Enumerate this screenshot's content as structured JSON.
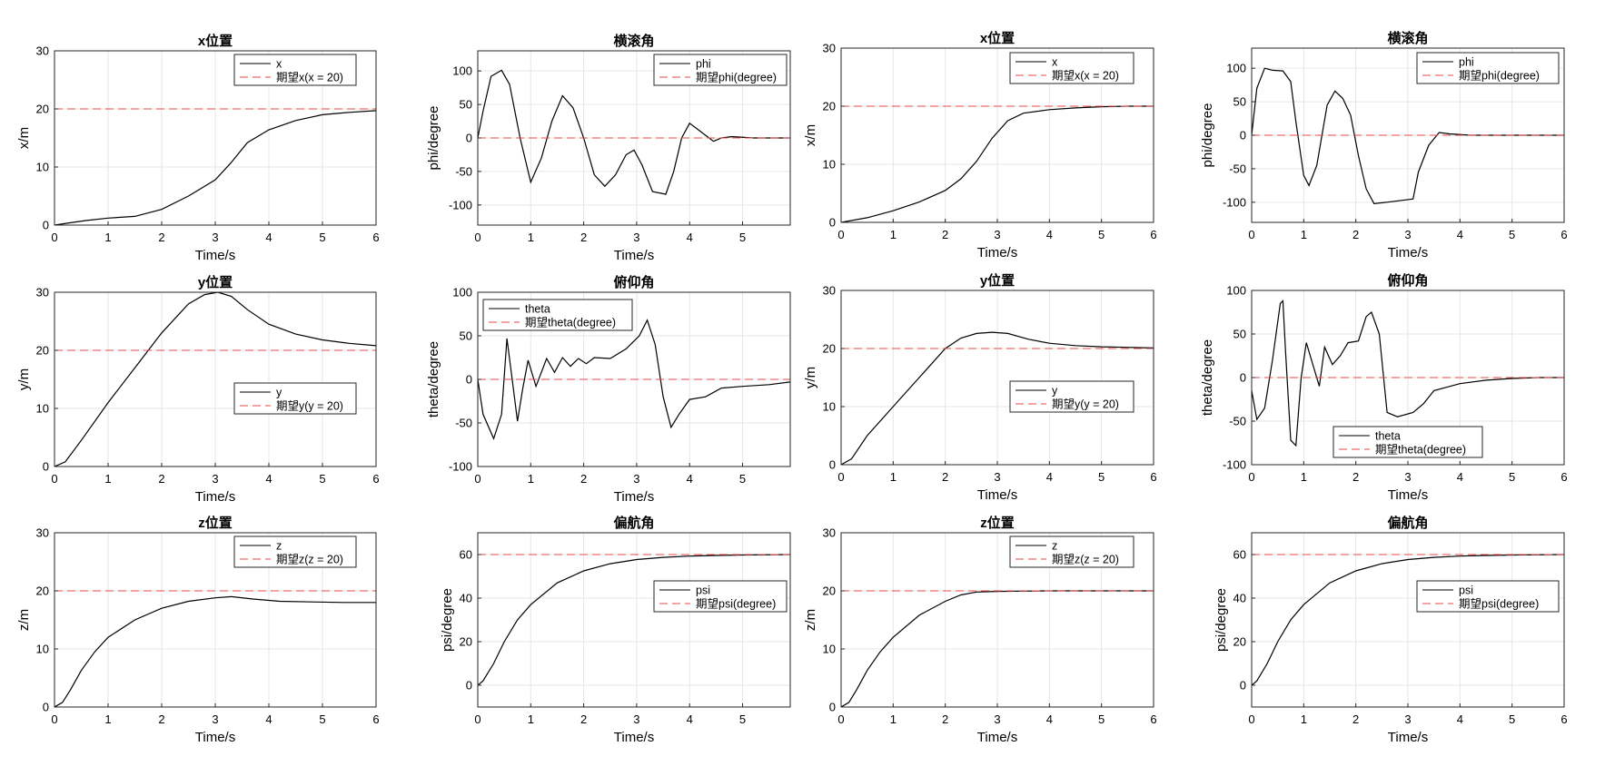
{
  "colors": {
    "series": "#000000",
    "reference": "#e8474a",
    "grid": "#e6e6e6",
    "axes": "#262626"
  },
  "chart_data": [
    {
      "type": "line",
      "title": "x位置",
      "xlabel": "Time/s",
      "ylabel": "x/m",
      "xlim": [
        0,
        6
      ],
      "ylim": [
        0,
        30
      ],
      "xticks": [
        0,
        1,
        2,
        3,
        4,
        5,
        6
      ],
      "yticks": [
        0,
        10,
        20,
        30
      ],
      "grid": true,
      "legend_position": "top-right",
      "series": [
        {
          "name": "x",
          "style": "solid",
          "x": [
            0,
            0.3,
            0.6,
            1,
            1.5,
            2,
            2.5,
            3,
            3.3,
            3.6,
            4,
            4.5,
            5,
            5.5,
            6
          ],
          "y": [
            0,
            0.4,
            0.8,
            1.2,
            1.5,
            2.7,
            5,
            7.8,
            10.8,
            14.2,
            16.4,
            18,
            19,
            19.4,
            19.7
          ]
        },
        {
          "name": "期望x(x = 20)",
          "style": "dashed",
          "x": [
            0,
            6
          ],
          "y": [
            20,
            20
          ]
        }
      ]
    },
    {
      "type": "line",
      "title": "横滚角",
      "xlabel": "Time/s",
      "ylabel": "phi/degree",
      "xlim": [
        0,
        5.9
      ],
      "ylim": [
        -130,
        130
      ],
      "xticks": [
        0,
        1,
        2,
        3,
        4,
        5
      ],
      "yticks": [
        -100,
        -50,
        0,
        50,
        100
      ],
      "grid": true,
      "legend_position": "top-right",
      "series": [
        {
          "name": "phi",
          "style": "solid",
          "x": [
            0,
            0.1,
            0.25,
            0.45,
            0.6,
            0.8,
            1,
            1.2,
            1.4,
            1.6,
            1.8,
            2,
            2.2,
            2.4,
            2.6,
            2.8,
            2.95,
            3.1,
            3.3,
            3.55,
            3.7,
            3.85,
            4,
            4.2,
            4.45,
            4.6,
            4.8,
            5.2,
            5.9
          ],
          "y": [
            0,
            40,
            92,
            101,
            80,
            0,
            -66,
            -30,
            25,
            63,
            45,
            0,
            -55,
            -72,
            -55,
            -25,
            -18,
            -40,
            -80,
            -84,
            -50,
            0,
            22,
            10,
            -5,
            0,
            2,
            0,
            0
          ]
        },
        {
          "name": "期望phi(degree)",
          "style": "dashed",
          "x": [
            0,
            5.9
          ],
          "y": [
            0,
            0
          ]
        }
      ]
    },
    {
      "type": "line",
      "title": "x位置",
      "xlabel": "Time/s",
      "ylabel": "x/m",
      "xlim": [
        0,
        6
      ],
      "ylim": [
        0,
        30
      ],
      "xticks": [
        0,
        1,
        2,
        3,
        4,
        5,
        6
      ],
      "yticks": [
        0,
        10,
        20,
        30
      ],
      "grid": true,
      "legend_position": "top-right",
      "series": [
        {
          "name": "x",
          "style": "solid",
          "x": [
            0,
            0.5,
            1,
            1.5,
            2,
            2.3,
            2.6,
            2.9,
            3.2,
            3.5,
            4,
            4.5,
            5,
            5.5,
            6
          ],
          "y": [
            0,
            0.8,
            2,
            3.5,
            5.5,
            7.5,
            10.5,
            14.5,
            17.5,
            18.8,
            19.4,
            19.7,
            19.9,
            20,
            20
          ]
        },
        {
          "name": "期望x(x = 20)",
          "style": "dashed",
          "x": [
            0,
            6
          ],
          "y": [
            20,
            20
          ]
        }
      ]
    },
    {
      "type": "line",
      "title": "横滚角",
      "xlabel": "Time/s",
      "ylabel": "phi/degree",
      "xlim": [
        0,
        6
      ],
      "ylim": [
        -130,
        130
      ],
      "xticks": [
        0,
        1,
        2,
        3,
        4,
        5,
        6
      ],
      "yticks": [
        -100,
        -50,
        0,
        50,
        100
      ],
      "grid": true,
      "legend_position": "top-right",
      "series": [
        {
          "name": "phi",
          "style": "solid",
          "x": [
            0,
            0.1,
            0.25,
            0.4,
            0.6,
            0.75,
            0.85,
            1,
            1.1,
            1.25,
            1.45,
            1.6,
            1.75,
            1.9,
            2.05,
            2.2,
            2.35,
            2.6,
            3.1,
            3.2,
            3.4,
            3.6,
            3.8,
            4.2,
            6
          ],
          "y": [
            0,
            70,
            100,
            97,
            96,
            80,
            20,
            -60,
            -75,
            -45,
            45,
            66,
            55,
            30,
            -30,
            -80,
            -102,
            -100,
            -95,
            -55,
            -15,
            4,
            2,
            0,
            0
          ]
        },
        {
          "name": "期望phi(degree)",
          "style": "dashed",
          "x": [
            0,
            6
          ],
          "y": [
            0,
            0
          ]
        }
      ]
    },
    {
      "type": "line",
      "title": "y位置",
      "xlabel": "Time/s",
      "ylabel": "y/m",
      "xlim": [
        0,
        6
      ],
      "ylim": [
        0,
        30
      ],
      "xticks": [
        0,
        1,
        2,
        3,
        4,
        5,
        6
      ],
      "yticks": [
        0,
        10,
        20,
        30
      ],
      "grid": true,
      "legend_position": "bottom-right",
      "series": [
        {
          "name": "y",
          "style": "solid",
          "x": [
            0,
            0.2,
            0.5,
            1,
            1.5,
            2,
            2.5,
            2.8,
            3.05,
            3.3,
            3.6,
            4,
            4.5,
            5,
            5.5,
            6
          ],
          "y": [
            0,
            0.8,
            4.5,
            11,
            17,
            23,
            28,
            29.6,
            30,
            29.3,
            27,
            24.5,
            22.8,
            21.8,
            21.2,
            20.8
          ]
        },
        {
          "name": "期望y(y = 20)",
          "style": "dashed",
          "x": [
            0,
            6
          ],
          "y": [
            20,
            20
          ]
        }
      ]
    },
    {
      "type": "line",
      "title": "俯仰角",
      "xlabel": "Time/s",
      "ylabel": "theta/degree",
      "xlim": [
        0,
        5.9
      ],
      "ylim": [
        -100,
        100
      ],
      "xticks": [
        0,
        1,
        2,
        3,
        4,
        5
      ],
      "yticks": [
        -100,
        -50,
        0,
        50,
        100
      ],
      "grid": true,
      "legend_position": "top-left",
      "series": [
        {
          "name": "theta",
          "style": "solid",
          "x": [
            0,
            0.1,
            0.3,
            0.45,
            0.55,
            0.65,
            0.75,
            0.85,
            0.95,
            1.1,
            1.3,
            1.45,
            1.6,
            1.75,
            1.9,
            2.05,
            2.2,
            2.5,
            2.8,
            3.05,
            3.2,
            3.35,
            3.5,
            3.65,
            3.8,
            4,
            4.3,
            4.6,
            5,
            5.5,
            5.9
          ],
          "y": [
            0,
            -40,
            -68,
            -40,
            47,
            0,
            -48,
            -10,
            22,
            -8,
            24,
            8,
            25,
            15,
            24,
            18,
            25,
            24,
            35,
            50,
            68,
            40,
            -20,
            -55,
            -40,
            -23,
            -20,
            -10,
            -8,
            -6,
            -3
          ]
        },
        {
          "name": "期望theta(degree)",
          "style": "dashed",
          "x": [
            0,
            5.9
          ],
          "y": [
            0,
            0
          ]
        }
      ]
    },
    {
      "type": "line",
      "title": "y位置",
      "xlabel": "Time/s",
      "ylabel": "y/m",
      "xlim": [
        0,
        6
      ],
      "ylim": [
        0,
        30
      ],
      "xticks": [
        0,
        1,
        2,
        3,
        4,
        5,
        6
      ],
      "yticks": [
        0,
        10,
        20,
        30
      ],
      "grid": true,
      "legend_position": "bottom-right",
      "series": [
        {
          "name": "y",
          "style": "solid",
          "x": [
            0,
            0.2,
            0.5,
            1,
            1.5,
            2,
            2.3,
            2.6,
            2.9,
            3.2,
            3.6,
            4,
            4.5,
            5,
            5.5,
            6
          ],
          "y": [
            0,
            1,
            5,
            10,
            15,
            20,
            21.8,
            22.6,
            22.8,
            22.6,
            21.6,
            20.9,
            20.5,
            20.3,
            20.2,
            20.1
          ]
        },
        {
          "name": "期望y(y = 20)",
          "style": "dashed",
          "x": [
            0,
            6
          ],
          "y": [
            20,
            20
          ]
        }
      ]
    },
    {
      "type": "line",
      "title": "俯仰角",
      "xlabel": "Time/s",
      "ylabel": "theta/degree",
      "xlim": [
        0,
        6
      ],
      "ylim": [
        -100,
        100
      ],
      "xticks": [
        0,
        1,
        2,
        3,
        4,
        5,
        6
      ],
      "yticks": [
        -100,
        -50,
        0,
        50,
        100
      ],
      "grid": true,
      "legend_position": "bottom-center",
      "series": [
        {
          "name": "theta",
          "style": "solid",
          "x": [
            0,
            0.1,
            0.25,
            0.4,
            0.55,
            0.6,
            0.65,
            0.75,
            0.85,
            0.95,
            1.05,
            1.15,
            1.3,
            1.4,
            1.55,
            1.7,
            1.85,
            2.05,
            2.2,
            2.3,
            2.45,
            2.6,
            2.8,
            3.1,
            3.3,
            3.5,
            4,
            4.5,
            5,
            5.5,
            6
          ],
          "y": [
            -15,
            -48,
            -35,
            20,
            85,
            88,
            30,
            -72,
            -78,
            0,
            40,
            20,
            -10,
            35,
            15,
            25,
            40,
            42,
            70,
            75,
            50,
            -40,
            -45,
            -40,
            -30,
            -15,
            -7,
            -3,
            -1,
            0,
            0
          ]
        },
        {
          "name": "期望theta(degree)",
          "style": "dashed",
          "x": [
            0,
            6
          ],
          "y": [
            0,
            0
          ]
        }
      ]
    },
    {
      "type": "line",
      "title": "z位置",
      "xlabel": "Time/s",
      "ylabel": "z/m",
      "xlim": [
        0,
        6
      ],
      "ylim": [
        0,
        30
      ],
      "xticks": [
        0,
        1,
        2,
        3,
        4,
        5,
        6
      ],
      "yticks": [
        0,
        10,
        20,
        30
      ],
      "grid": true,
      "legend_position": "top-right",
      "series": [
        {
          "name": "z",
          "style": "solid",
          "x": [
            0,
            0.15,
            0.3,
            0.5,
            0.75,
            1,
            1.5,
            2,
            2.5,
            3,
            3.3,
            3.7,
            4.2,
            4.8,
            5.4,
            6
          ],
          "y": [
            0,
            0.8,
            3,
            6.3,
            9.5,
            12,
            15,
            17,
            18.2,
            18.8,
            19,
            18.6,
            18.2,
            18.1,
            18,
            18
          ]
        },
        {
          "name": "期望z(z = 20)",
          "style": "dashed",
          "x": [
            0,
            6
          ],
          "y": [
            20,
            20
          ]
        }
      ]
    },
    {
      "type": "line",
      "title": "偏航角",
      "xlabel": "Time/s",
      "ylabel": "psi/degree",
      "xlim": [
        0,
        5.9
      ],
      "ylim": [
        -10,
        70
      ],
      "xticks": [
        0,
        1,
        2,
        3,
        4,
        5
      ],
      "yticks": [
        0,
        20,
        40,
        60
      ],
      "grid": true,
      "legend_position": "right",
      "series": [
        {
          "name": "psi",
          "style": "solid",
          "x": [
            0,
            0.1,
            0.3,
            0.5,
            0.75,
            1,
            1.5,
            2,
            2.5,
            3,
            3.5,
            4,
            4.5,
            5,
            5.9
          ],
          "y": [
            0,
            2,
            10,
            20,
            30,
            37,
            47,
            52.5,
            55.8,
            57.7,
            58.7,
            59.3,
            59.6,
            59.8,
            60
          ]
        },
        {
          "name": "期望psi(degree)",
          "style": "dashed",
          "x": [
            0,
            5.9
          ],
          "y": [
            60,
            60
          ]
        }
      ]
    },
    {
      "type": "line",
      "title": "z位置",
      "xlabel": "Time/s",
      "ylabel": "z/m",
      "xlim": [
        0,
        6
      ],
      "ylim": [
        0,
        30
      ],
      "xticks": [
        0,
        1,
        2,
        3,
        4,
        5,
        6
      ],
      "yticks": [
        0,
        10,
        20,
        30
      ],
      "grid": true,
      "legend_position": "top-right",
      "series": [
        {
          "name": "z",
          "style": "solid",
          "x": [
            0,
            0.15,
            0.3,
            0.5,
            0.75,
            1,
            1.5,
            2,
            2.3,
            2.6,
            3,
            3.5,
            4,
            5,
            6
          ],
          "y": [
            0,
            0.8,
            3,
            6.3,
            9.5,
            12,
            15.8,
            18.2,
            19.3,
            19.8,
            19.9,
            19.95,
            20,
            20,
            20
          ]
        },
        {
          "name": "期望z(z = 20)",
          "style": "dashed",
          "x": [
            0,
            6
          ],
          "y": [
            20,
            20
          ]
        }
      ]
    },
    {
      "type": "line",
      "title": "偏航角",
      "xlabel": "Time/s",
      "ylabel": "psi/degree",
      "xlim": [
        0,
        6
      ],
      "ylim": [
        -10,
        70
      ],
      "xticks": [
        0,
        1,
        2,
        3,
        4,
        5,
        6
      ],
      "yticks": [
        0,
        20,
        40,
        60
      ],
      "grid": true,
      "legend_position": "right",
      "series": [
        {
          "name": "psi",
          "style": "solid",
          "x": [
            0,
            0.1,
            0.3,
            0.5,
            0.75,
            1,
            1.5,
            2,
            2.5,
            3,
            3.5,
            4,
            4.5,
            5,
            6
          ],
          "y": [
            0,
            2,
            10,
            20,
            30,
            37,
            47,
            52.5,
            55.8,
            57.7,
            58.7,
            59.3,
            59.6,
            59.8,
            60
          ]
        },
        {
          "name": "期望psi(degree)",
          "style": "dashed",
          "x": [
            0,
            6
          ],
          "y": [
            60,
            60
          ]
        }
      ]
    }
  ]
}
